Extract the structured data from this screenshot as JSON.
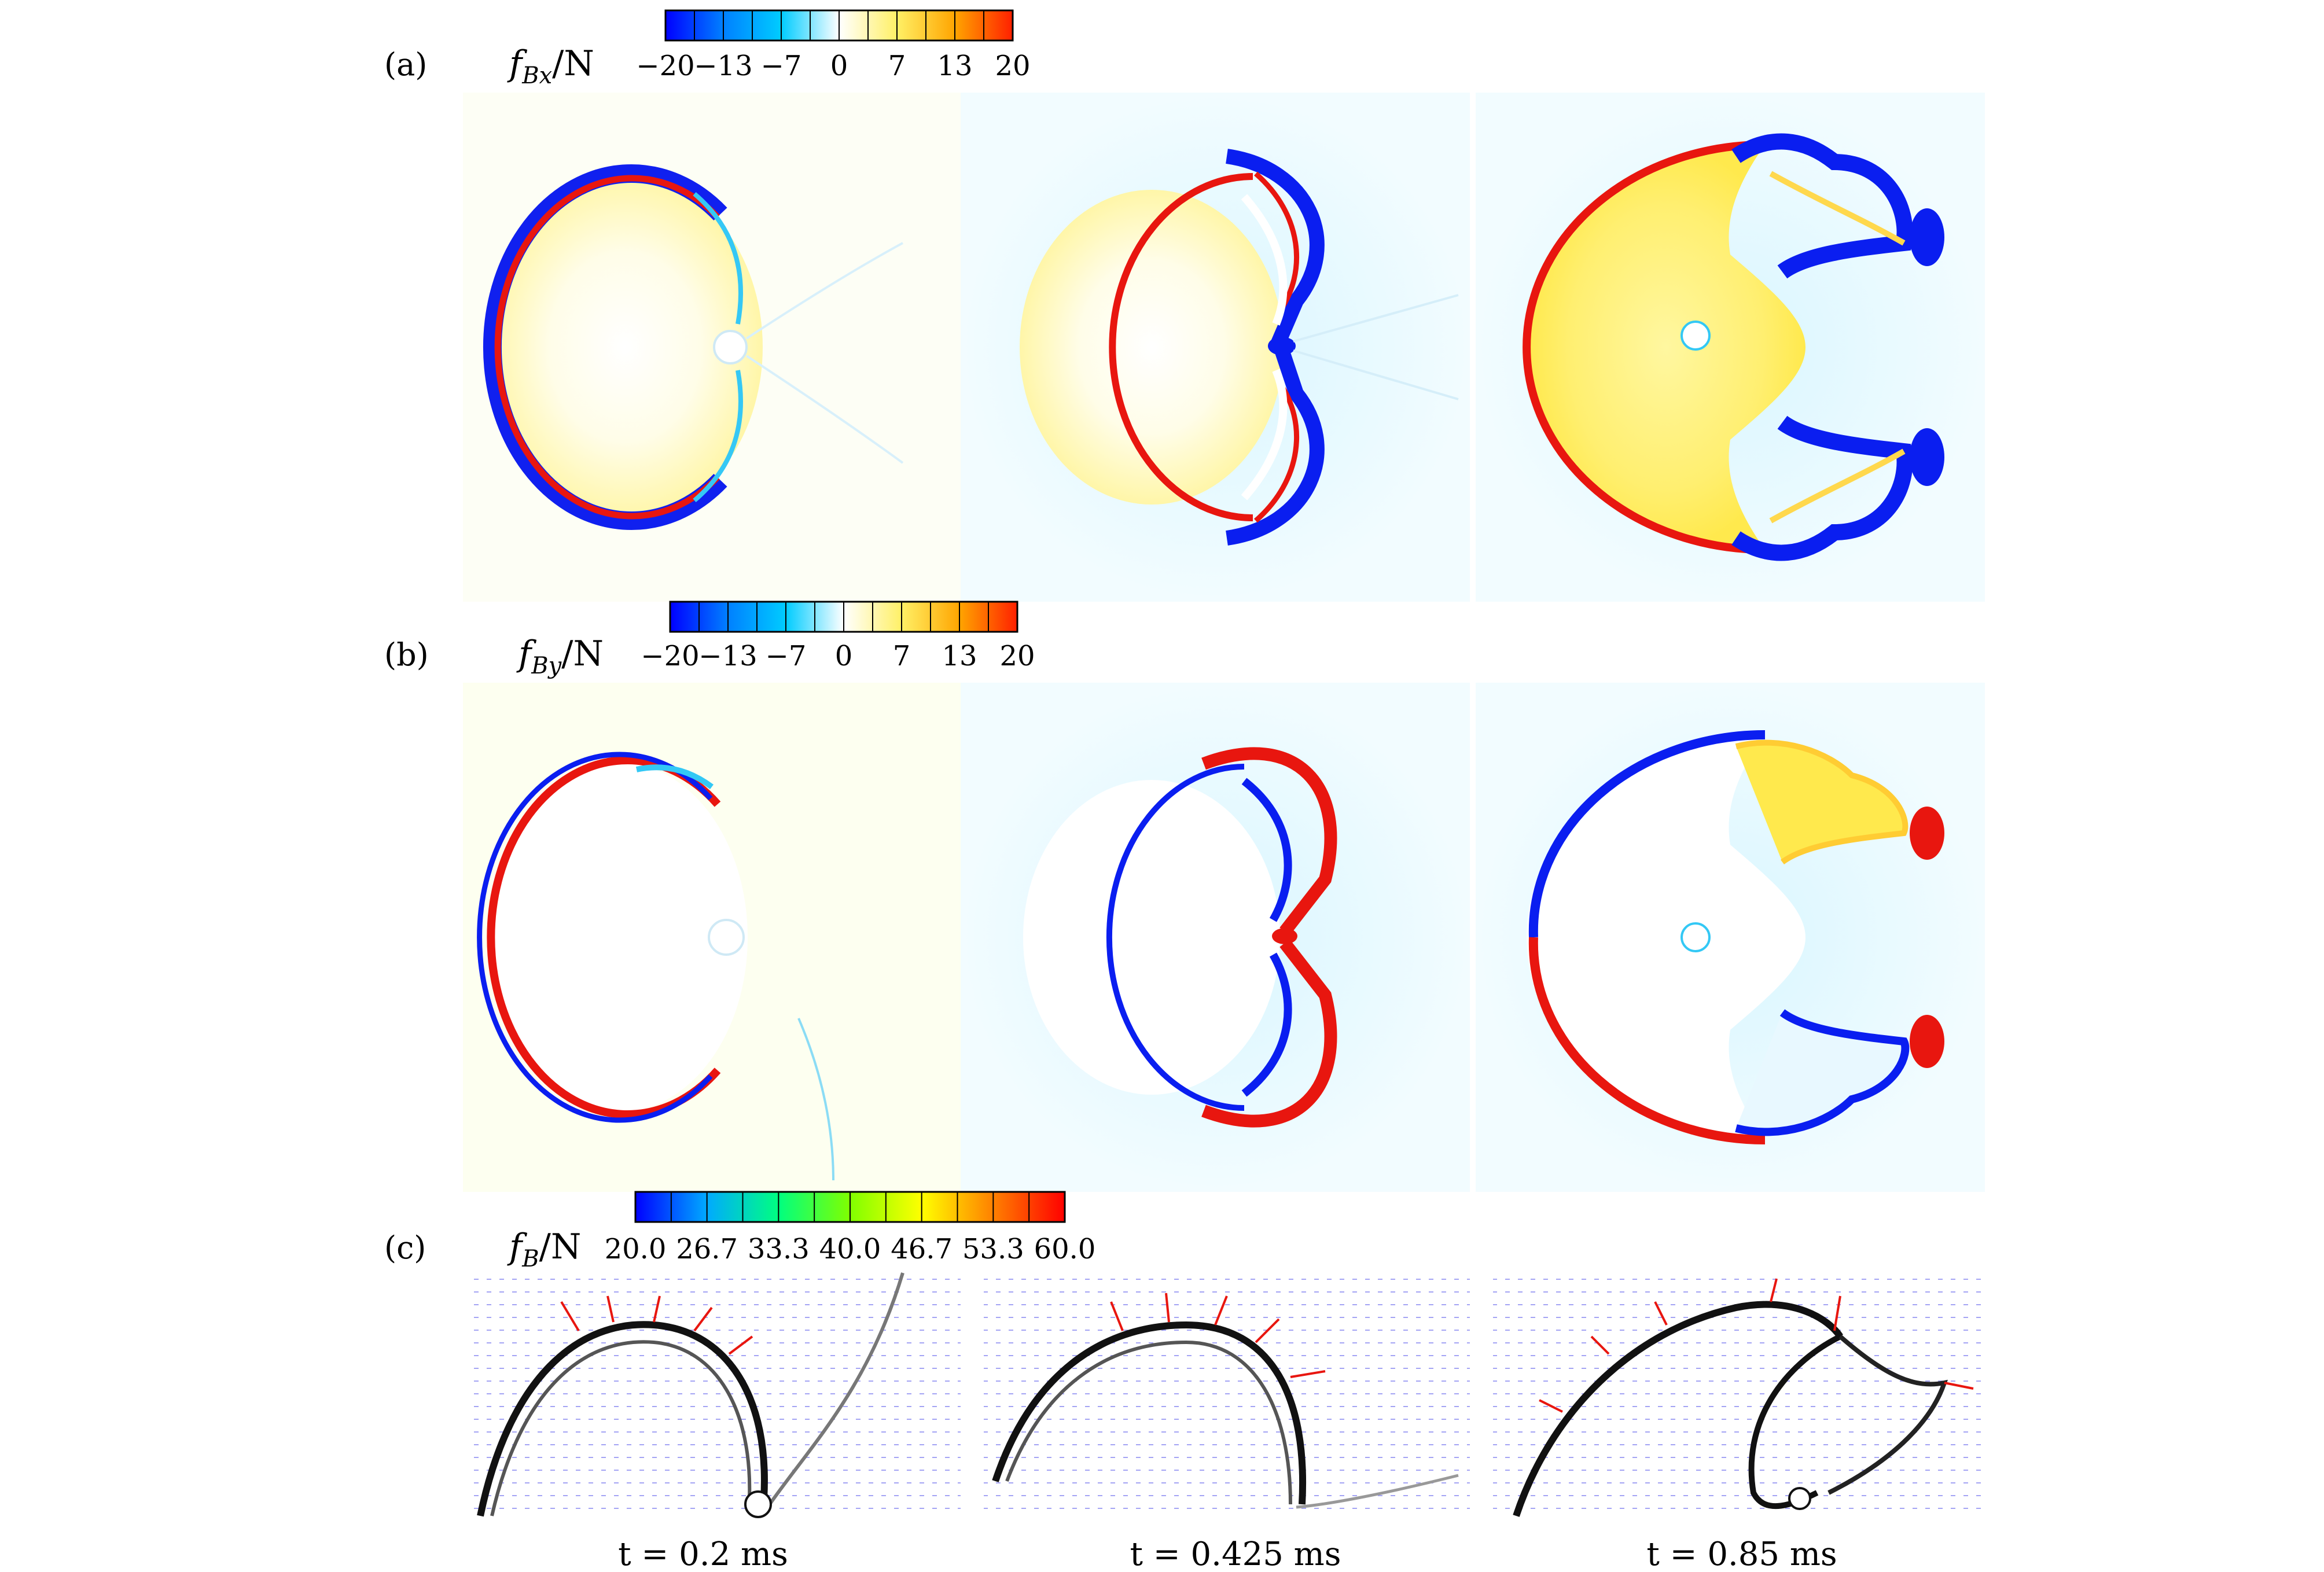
{
  "panels": [
    {
      "label": "(a)",
      "quantity": "f",
      "subscript": "Bx",
      "unit": "N",
      "colorbar": {
        "ticks": [
          "−20",
          "−13",
          "−7",
          "0",
          "7",
          "13",
          "20"
        ],
        "colors": [
          "#0000ff",
          "#0080ff",
          "#00ccff",
          "#ffffff",
          "#fff066",
          "#ffa500",
          "#ff2000"
        ]
      }
    },
    {
      "label": "(b)",
      "quantity": "f",
      "subscript": "By",
      "unit": "N",
      "colorbar": {
        "ticks": [
          "−20",
          "−13",
          "−7",
          "0",
          "7",
          "13",
          "20"
        ],
        "colors": [
          "#0000ff",
          "#0080ff",
          "#00ccff",
          "#ffffff",
          "#fff066",
          "#ffa500",
          "#ff2000"
        ]
      }
    },
    {
      "label": "(c)",
      "quantity": "f",
      "subscript": "B",
      "unit": "N",
      "colorbar": {
        "ticks": [
          "20.0",
          "26.7",
          "33.3",
          "40.0",
          "46.7",
          "53.3",
          "60.0"
        ],
        "colors": [
          "#0000ff",
          "#00aaff",
          "#00ff80",
          "#80ff00",
          "#ffff00",
          "#ff8000",
          "#ff0000"
        ]
      }
    }
  ],
  "times": [
    "t = 0.2 ms",
    "t = 0.425 ms",
    "t = 0.85 ms"
  ],
  "colors": {
    "blue": "#0a1ef0",
    "cyan": "#33c8f5",
    "yellow": "#ffe94d",
    "red": "#e8160f",
    "black": "#111111"
  }
}
